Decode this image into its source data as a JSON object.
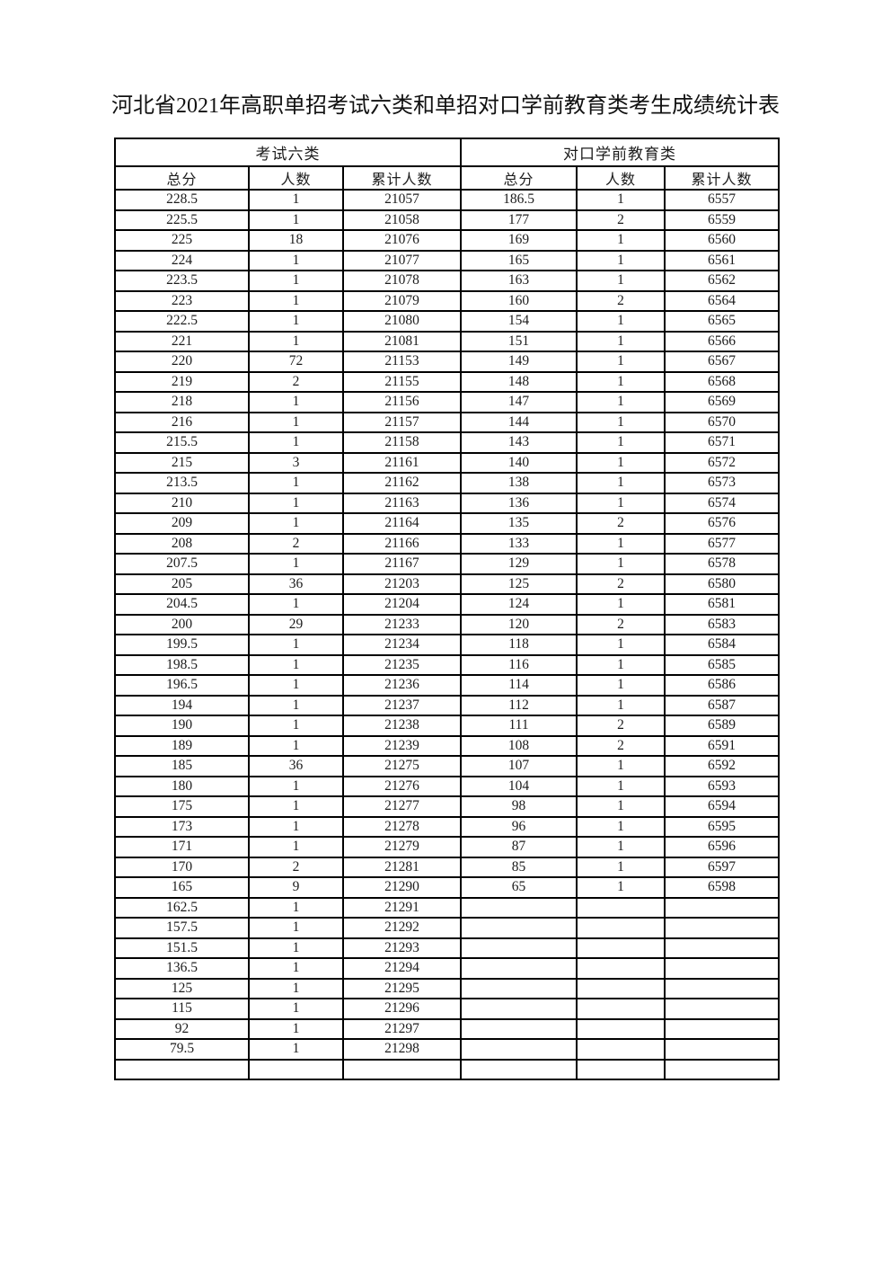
{
  "page": {
    "title": "河北省2021年高职单招考试六类和单招对口学前教育类考生成绩统计表"
  },
  "table": {
    "groups": [
      {
        "label": "考试六类"
      },
      {
        "label": "对口学前教育类"
      }
    ],
    "columns": [
      "总分",
      "人数",
      "累计人数",
      "总分",
      "人数",
      "累计人数"
    ],
    "rows": [
      [
        "228.5",
        "1",
        "21057",
        "186.5",
        "1",
        "6557"
      ],
      [
        "225.5",
        "1",
        "21058",
        "177",
        "2",
        "6559"
      ],
      [
        "225",
        "18",
        "21076",
        "169",
        "1",
        "6560"
      ],
      [
        "224",
        "1",
        "21077",
        "165",
        "1",
        "6561"
      ],
      [
        "223.5",
        "1",
        "21078",
        "163",
        "1",
        "6562"
      ],
      [
        "223",
        "1",
        "21079",
        "160",
        "2",
        "6564"
      ],
      [
        "222.5",
        "1",
        "21080",
        "154",
        "1",
        "6565"
      ],
      [
        "221",
        "1",
        "21081",
        "151",
        "1",
        "6566"
      ],
      [
        "220",
        "72",
        "21153",
        "149",
        "1",
        "6567"
      ],
      [
        "219",
        "2",
        "21155",
        "148",
        "1",
        "6568"
      ],
      [
        "218",
        "1",
        "21156",
        "147",
        "1",
        "6569"
      ],
      [
        "216",
        "1",
        "21157",
        "144",
        "1",
        "6570"
      ],
      [
        "215.5",
        "1",
        "21158",
        "143",
        "1",
        "6571"
      ],
      [
        "215",
        "3",
        "21161",
        "140",
        "1",
        "6572"
      ],
      [
        "213.5",
        "1",
        "21162",
        "138",
        "1",
        "6573"
      ],
      [
        "210",
        "1",
        "21163",
        "136",
        "1",
        "6574"
      ],
      [
        "209",
        "1",
        "21164",
        "135",
        "2",
        "6576"
      ],
      [
        "208",
        "2",
        "21166",
        "133",
        "1",
        "6577"
      ],
      [
        "207.5",
        "1",
        "21167",
        "129",
        "1",
        "6578"
      ],
      [
        "205",
        "36",
        "21203",
        "125",
        "2",
        "6580"
      ],
      [
        "204.5",
        "1",
        "21204",
        "124",
        "1",
        "6581"
      ],
      [
        "200",
        "29",
        "21233",
        "120",
        "2",
        "6583"
      ],
      [
        "199.5",
        "1",
        "21234",
        "118",
        "1",
        "6584"
      ],
      [
        "198.5",
        "1",
        "21235",
        "116",
        "1",
        "6585"
      ],
      [
        "196.5",
        "1",
        "21236",
        "114",
        "1",
        "6586"
      ],
      [
        "194",
        "1",
        "21237",
        "112",
        "1",
        "6587"
      ],
      [
        "190",
        "1",
        "21238",
        "111",
        "2",
        "6589"
      ],
      [
        "189",
        "1",
        "21239",
        "108",
        "2",
        "6591"
      ],
      [
        "185",
        "36",
        "21275",
        "107",
        "1",
        "6592"
      ],
      [
        "180",
        "1",
        "21276",
        "104",
        "1",
        "6593"
      ],
      [
        "175",
        "1",
        "21277",
        "98",
        "1",
        "6594"
      ],
      [
        "173",
        "1",
        "21278",
        "96",
        "1",
        "6595"
      ],
      [
        "171",
        "1",
        "21279",
        "87",
        "1",
        "6596"
      ],
      [
        "170",
        "2",
        "21281",
        "85",
        "1",
        "6597"
      ],
      [
        "165",
        "9",
        "21290",
        "65",
        "1",
        "6598"
      ],
      [
        "162.5",
        "1",
        "21291",
        "",
        "",
        ""
      ],
      [
        "157.5",
        "1",
        "21292",
        "",
        "",
        ""
      ],
      [
        "151.5",
        "1",
        "21293",
        "",
        "",
        ""
      ],
      [
        "136.5",
        "1",
        "21294",
        "",
        "",
        ""
      ],
      [
        "125",
        "1",
        "21295",
        "",
        "",
        ""
      ],
      [
        "115",
        "1",
        "21296",
        "",
        "",
        ""
      ],
      [
        "92",
        "1",
        "21297",
        "",
        "",
        ""
      ],
      [
        "79.5",
        "1",
        "21298",
        "",
        "",
        ""
      ],
      [
        "",
        "",
        "",
        "",
        "",
        ""
      ]
    ]
  }
}
